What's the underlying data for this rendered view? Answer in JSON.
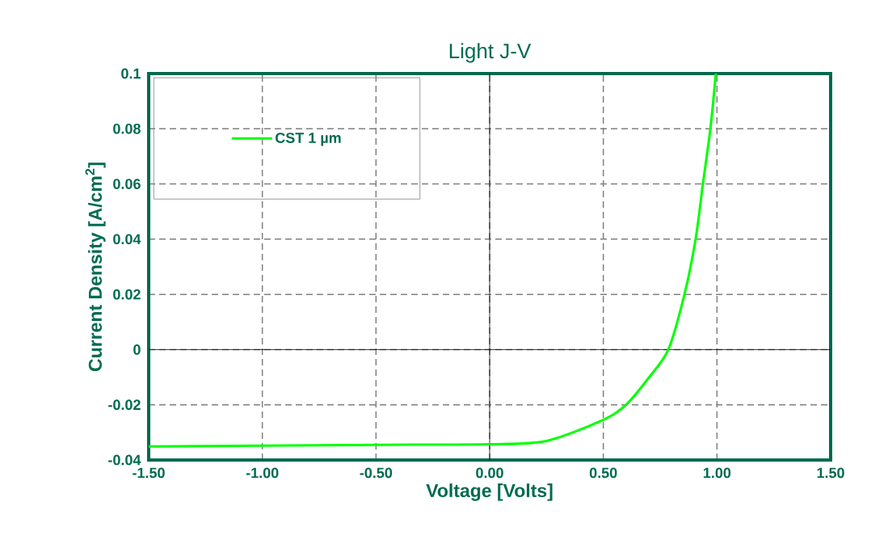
{
  "chart_data": {
    "type": "line",
    "title": "Light J-V",
    "xlabel": "Voltage [Volts]",
    "ylabel": "Current Density [A/cm$^{2}$]",
    "series": [
      {
        "name": "CST 1 µm",
        "color": "#00ff00",
        "x": [
          -1.5,
          -1.0,
          -0.5,
          0.0,
          0.25,
          0.5,
          0.6,
          0.7,
          0.786,
          0.857,
          0.906,
          0.938,
          0.971,
          0.995
        ],
        "values": [
          -0.0351,
          -0.0348,
          -0.0345,
          -0.0343,
          -0.0331,
          -0.0255,
          -0.02,
          -0.0102,
          0.0,
          0.02,
          0.04,
          0.06,
          0.08,
          0.1
        ]
      }
    ],
    "xlim": [
      -1.5,
      1.5
    ],
    "ylim": [
      -0.04,
      0.1
    ],
    "xticks": [
      {
        "value": -1.5,
        "label": "-1.50"
      },
      {
        "value": -1.0,
        "label": "-1.00"
      },
      {
        "value": -0.5,
        "label": "-0.50"
      },
      {
        "value": 0,
        "label": "0.00"
      },
      {
        "value": 0.5,
        "label": "0.50"
      },
      {
        "value": 1.0,
        "label": "1.00"
      },
      {
        "value": 1.5,
        "label": "1.50"
      }
    ],
    "yticks": [
      -0.04,
      -0.02,
      0,
      0.02,
      0.04,
      0.06,
      0.08,
      0.1
    ],
    "grid": true,
    "legend": "top left",
    "marker": "none",
    "line_style": "solid"
  }
}
